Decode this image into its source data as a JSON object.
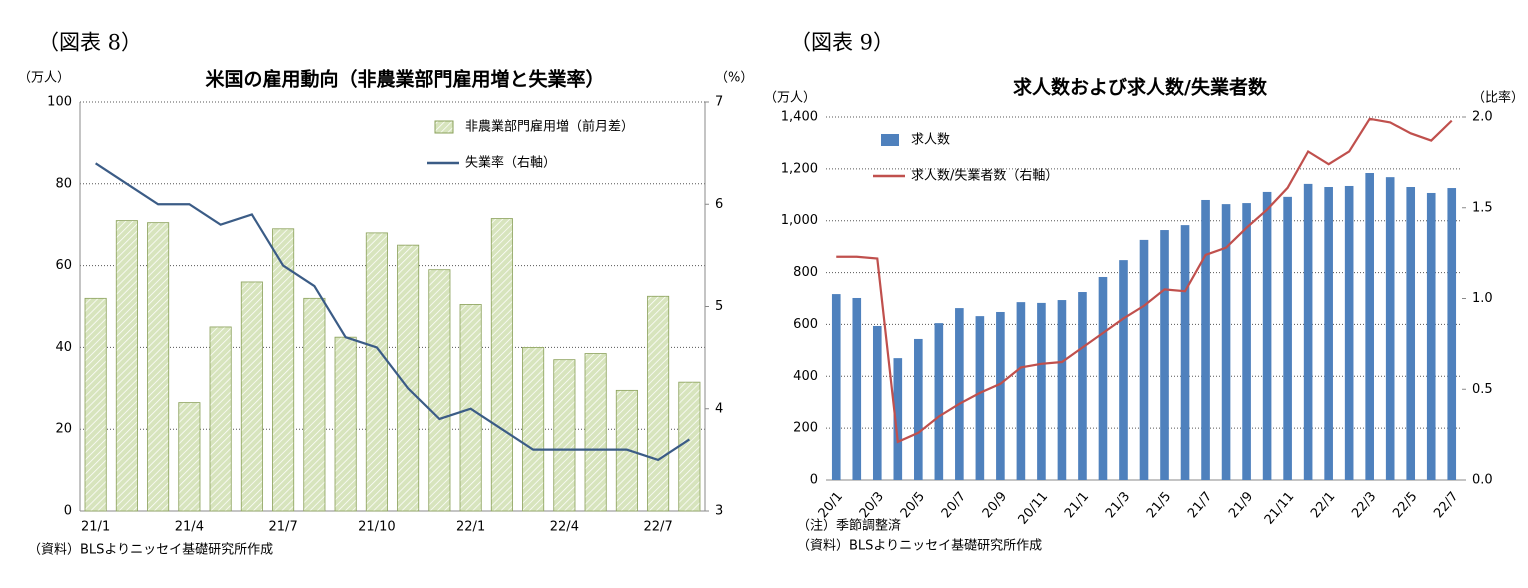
{
  "chart_data": [
    {
      "type": "bar_line",
      "figure_label": "（図表 8）",
      "title": "米国の雇用動向（非農業部門雇用増と失業率）",
      "y_unit": "（万人）",
      "y2_unit": "（%）",
      "categories": [
        "21/1",
        null,
        null,
        "21/4",
        null,
        null,
        "21/7",
        null,
        null,
        "21/10",
        null,
        null,
        "22/1",
        null,
        null,
        "22/4",
        null,
        null,
        "22/7",
        null
      ],
      "series": [
        {
          "name": "非農業部門雇用増（前月差）",
          "kind": "bar",
          "color": "#d7e4bd",
          "values": [
            52,
            71,
            70.5,
            26.5,
            45,
            56,
            69,
            52,
            42.5,
            68,
            65,
            59,
            50.5,
            71.5,
            40,
            37,
            38.5,
            29.5,
            52.5,
            31.5
          ]
        },
        {
          "name": "失業率（右軸）",
          "kind": "line",
          "axis": "y2",
          "color": "#3b5c86",
          "values": [
            6.4,
            6.2,
            6.0,
            6.0,
            5.8,
            5.9,
            5.4,
            5.2,
            4.7,
            4.6,
            4.2,
            3.9,
            4.0,
            3.8,
            3.6,
            3.6,
            3.6,
            3.6,
            3.5,
            3.7
          ]
        }
      ],
      "ylim": [
        0,
        100
      ],
      "yticks": [
        0,
        20,
        40,
        60,
        80,
        100
      ],
      "y2lim": [
        3,
        7
      ],
      "y2ticks": [
        3,
        4,
        5,
        6,
        7
      ],
      "grid": true,
      "legend": "upper right",
      "hatched_bars": true,
      "rotate_x_labels": false,
      "notes": [
        "（資料）BLSよりニッセイ基礎研究所作成"
      ]
    },
    {
      "type": "bar_line",
      "figure_label": "（図表 9）",
      "title": "求人数および求人数/失業者数",
      "y_unit": "（万人）",
      "y2_unit": "（比率）",
      "categories": [
        "20/1",
        null,
        "20/3",
        null,
        "20/5",
        null,
        "20/7",
        null,
        "20/9",
        null,
        "20/11",
        null,
        "21/1",
        null,
        "21/3",
        null,
        "21/5",
        null,
        "21/7",
        null,
        "21/9",
        null,
        "21/11",
        null,
        "22/1",
        null,
        "22/3",
        null,
        "22/5",
        null,
        "22/7"
      ],
      "series": [
        {
          "name": "求人数",
          "kind": "bar",
          "color": "#4f81bd",
          "values": [
            717,
            702,
            594,
            470,
            544,
            605,
            663,
            632,
            648,
            686,
            683,
            694,
            725,
            783,
            848,
            926,
            964,
            983,
            1080,
            1064,
            1068,
            1111,
            1092,
            1142,
            1130,
            1134,
            1184,
            1168,
            1130,
            1107,
            1126
          ]
        },
        {
          "name": "求人数/失業者数（右軸）",
          "kind": "line",
          "axis": "y2",
          "color": "#c0504d",
          "values": [
            1.23,
            1.23,
            1.22,
            0.21,
            0.26,
            0.35,
            0.42,
            0.48,
            0.53,
            0.62,
            0.64,
            0.65,
            0.73,
            0.81,
            0.89,
            0.96,
            1.05,
            1.04,
            1.24,
            1.28,
            1.39,
            1.49,
            1.61,
            1.81,
            1.74,
            1.81,
            1.99,
            1.97,
            1.91,
            1.87,
            1.98
          ]
        }
      ],
      "ylim": [
        0,
        1400
      ],
      "yticks": [
        0,
        200,
        400,
        600,
        800,
        {
          "value": 1000,
          "label": "1,000"
        },
        {
          "value": 1200,
          "label": "1,200"
        },
        {
          "value": 1400,
          "label": "1,400"
        }
      ],
      "y2lim": [
        0,
        2
      ],
      "y2ticks": [
        {
          "value": 0,
          "label": "0.0"
        },
        0.5,
        {
          "value": 1,
          "label": "1.0"
        },
        1.5,
        {
          "value": 2,
          "label": "2.0"
        }
      ],
      "grid": true,
      "legend": "upper left",
      "hatched_bars": false,
      "rotate_x_labels": true,
      "notes": [
        "（注）季節調整済",
        "（資料）BLSよりニッセイ基礎研究所作成"
      ]
    }
  ]
}
